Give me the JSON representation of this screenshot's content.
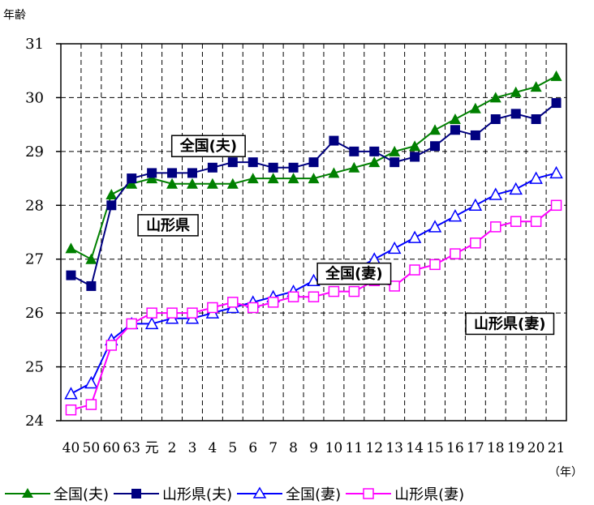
{
  "chart_data": {
    "type": "line",
    "ylabel": "年齢",
    "xunit": "（年）",
    "ylim": [
      24,
      31
    ],
    "yticks": [
      24,
      25,
      26,
      27,
      28,
      29,
      30,
      31
    ],
    "grid": true,
    "legend_position": "bottom",
    "categories": [
      "40",
      "50",
      "60",
      "63",
      "元",
      "2",
      "3",
      "4",
      "5",
      "6",
      "7",
      "8",
      "9",
      "10",
      "11",
      "12",
      "13",
      "14",
      "15",
      "16",
      "17",
      "18",
      "19",
      "20",
      "21"
    ],
    "series": [
      {
        "name": "全国(夫)",
        "color": "#008000",
        "marker": "filled-triangle",
        "values": [
          27.2,
          27.0,
          28.2,
          28.4,
          28.5,
          28.4,
          28.4,
          28.4,
          28.4,
          28.5,
          28.5,
          28.5,
          28.5,
          28.6,
          28.7,
          28.8,
          29.0,
          29.1,
          29.4,
          29.6,
          29.8,
          30.0,
          30.1,
          30.2,
          30.4
        ]
      },
      {
        "name": "山形県(夫)",
        "color": "#000080",
        "marker": "filled-square",
        "values": [
          26.7,
          26.5,
          28.0,
          28.5,
          28.6,
          28.6,
          28.6,
          28.7,
          28.8,
          28.8,
          28.7,
          28.7,
          28.8,
          29.2,
          29.0,
          29.0,
          28.8,
          28.9,
          29.1,
          29.4,
          29.3,
          29.6,
          29.7,
          29.6,
          29.9
        ]
      },
      {
        "name": "全国(妻)",
        "color": "#0000ff",
        "marker": "open-triangle",
        "values": [
          24.5,
          24.7,
          25.5,
          25.8,
          25.8,
          25.9,
          25.9,
          26.0,
          26.1,
          26.2,
          26.3,
          26.4,
          26.6,
          26.7,
          26.8,
          27.0,
          27.2,
          27.4,
          27.6,
          27.8,
          28.0,
          28.2,
          28.3,
          28.5,
          28.6
        ]
      },
      {
        "name": "山形県(妻)",
        "color": "#ff00ff",
        "marker": "open-square",
        "values": [
          24.2,
          24.3,
          25.4,
          25.8,
          26.0,
          26.0,
          26.0,
          26.1,
          26.2,
          26.1,
          26.2,
          26.3,
          26.3,
          26.4,
          26.4,
          26.6,
          26.5,
          26.8,
          26.9,
          27.1,
          27.3,
          27.6,
          27.7,
          27.7,
          28.0
        ]
      }
    ],
    "annotations": [
      {
        "text": "全国(夫)",
        "x_index": 6.8,
        "y_value": 29.1
      },
      {
        "text": "山形県",
        "x_index": 4.8,
        "y_value": 27.63
      },
      {
        "text": "全国(妻)",
        "x_index": 14.0,
        "y_value": 26.73
      },
      {
        "text": "山形県(妻)",
        "x_index": 21.7,
        "y_value": 25.8
      }
    ]
  }
}
